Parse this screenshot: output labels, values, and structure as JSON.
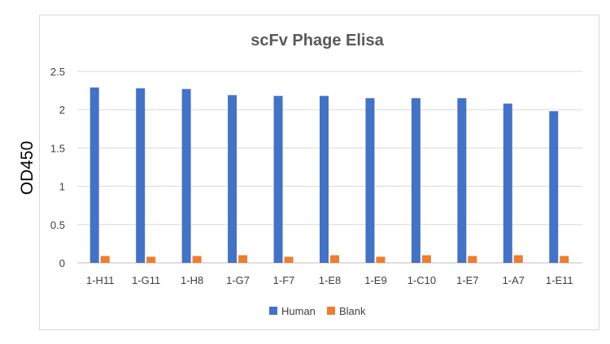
{
  "chart_data": {
    "type": "bar",
    "title": "scFv Phage Elisa",
    "xlabel": "",
    "ylabel": "OD450",
    "ylim": [
      0,
      2.5
    ],
    "yticks": [
      "0",
      "0.5",
      "1",
      "1.5",
      "2",
      "2.5"
    ],
    "grid": true,
    "legend": "bottom",
    "categories": [
      "1-H11",
      "1-G11",
      "1-H8",
      "1-G7",
      "1-F7",
      "1-E8",
      "1-E9",
      "1-C10",
      "1-E7",
      "1-A7",
      "1-E11"
    ],
    "series": [
      {
        "name": "Human",
        "color": "#4472c4",
        "values": [
          2.29,
          2.28,
          2.27,
          2.19,
          2.18,
          2.18,
          2.15,
          2.15,
          2.15,
          2.08,
          1.98
        ]
      },
      {
        "name": "Blank",
        "color": "#ed7d31",
        "values": [
          0.09,
          0.08,
          0.09,
          0.1,
          0.08,
          0.1,
          0.08,
          0.1,
          0.09,
          0.1,
          0.09
        ]
      }
    ]
  }
}
